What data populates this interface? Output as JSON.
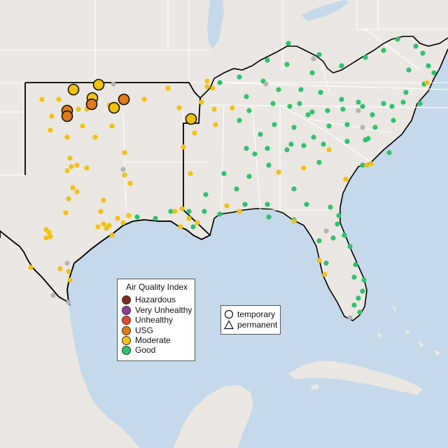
{
  "legend": {
    "title": "Air Quality Index",
    "categories": [
      {
        "label": "Hazardous",
        "color": "#7e2a1e"
      },
      {
        "label": "Very Unhealthy",
        "color": "#8f3f97"
      },
      {
        "label": "Unhealthy",
        "color": "#e04a2f"
      },
      {
        "label": "USG",
        "color": "#e07a18"
      },
      {
        "label": "Moderate",
        "color": "#f2c20e"
      },
      {
        "label": "Good",
        "color": "#2ec26d"
      }
    ],
    "shapes": [
      {
        "label": "temporary",
        "icon": "circle-icon"
      },
      {
        "label": "permanent",
        "icon": "triangle-icon"
      }
    ]
  },
  "colors": {
    "ocean": "#c6d9ea",
    "land": "#ebe7e3",
    "border": "#ffffff",
    "outline": "#000000",
    "no_data": "#b5b5b5"
  }
}
